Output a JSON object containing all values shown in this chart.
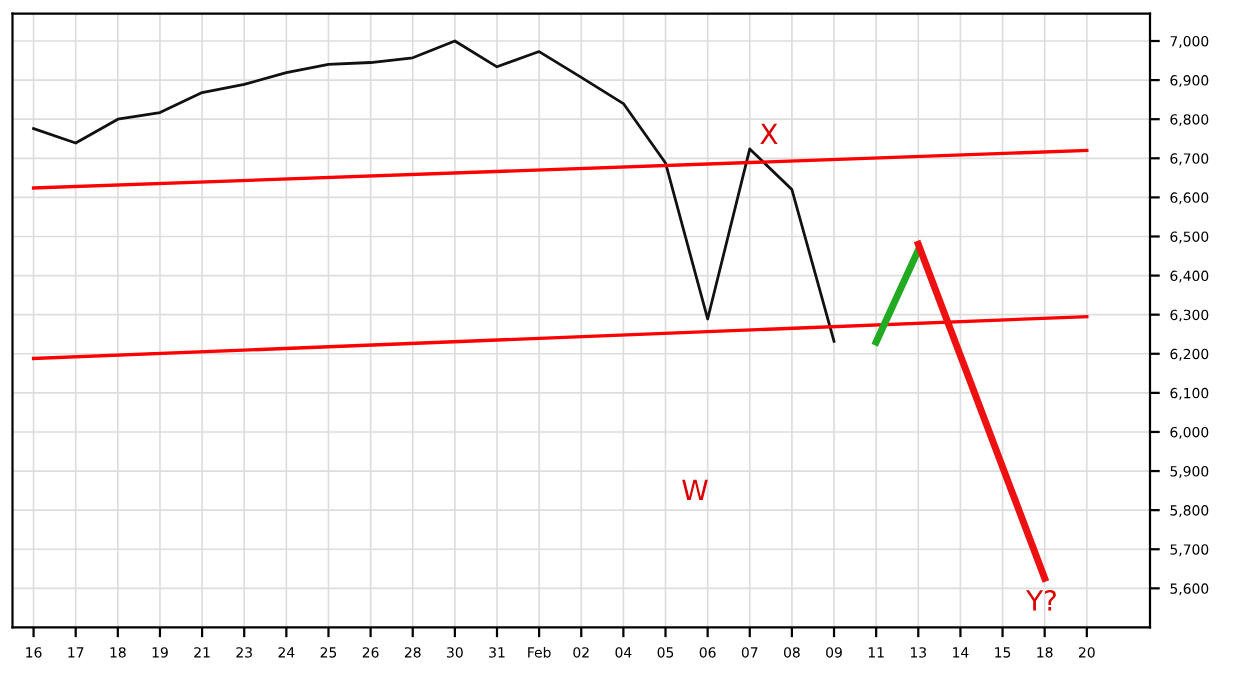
{
  "chart_data": {
    "type": "line",
    "grid": true,
    "categories": [
      "16",
      "17",
      "18",
      "19",
      "21",
      "23",
      "24",
      "25",
      "26",
      "28",
      "30",
      "31",
      "Feb",
      "02",
      "04",
      "05",
      "06",
      "07",
      "08",
      "09",
      "11",
      "13",
      "14",
      "15",
      "18",
      "20"
    ],
    "ylim": [
      5500,
      7070
    ],
    "yticks": [
      {
        "value": 5600,
        "label": "5,600"
      },
      {
        "value": 5700,
        "label": "5,700"
      },
      {
        "value": 5800,
        "label": "5,800"
      },
      {
        "value": 5900,
        "label": "5,900"
      },
      {
        "value": 6000,
        "label": "6,000"
      },
      {
        "value": 6100,
        "label": "6,100"
      },
      {
        "value": 6200,
        "label": "6,200"
      },
      {
        "value": 6300,
        "label": "6,300"
      },
      {
        "value": 6400,
        "label": "6,400"
      },
      {
        "value": 6500,
        "label": "6,500"
      },
      {
        "value": 6600,
        "label": "6,600"
      },
      {
        "value": 6700,
        "label": "6,700"
      },
      {
        "value": 6800,
        "label": "6,800"
      },
      {
        "value": 6900,
        "label": "6,900"
      },
      {
        "value": 7000,
        "label": "7,000"
      }
    ],
    "series": [
      {
        "color": "#111111",
        "values": [
          6776,
          6739,
          6800,
          6817,
          6868,
          6889,
          6919,
          6940,
          6945,
          6957,
          7000,
          6934,
          6973,
          6907,
          6840,
          6688,
          6289,
          6724,
          6620,
          6232,
          null,
          null,
          null,
          null,
          null,
          null
        ]
      },
      {
        "color": "#ff0000",
        "values": [
          6624,
          null,
          null,
          null,
          null,
          null,
          null,
          null,
          null,
          null,
          null,
          null,
          null,
          null,
          null,
          null,
          null,
          null,
          null,
          null,
          null,
          null,
          null,
          null,
          null,
          6720
        ]
      },
      {
        "color": "#ff0000",
        "values": [
          6188,
          null,
          null,
          null,
          null,
          null,
          null,
          null,
          null,
          null,
          null,
          null,
          null,
          null,
          null,
          null,
          null,
          null,
          null,
          null,
          null,
          null,
          null,
          null,
          null,
          6295
        ]
      },
      {
        "color": "#22aa22",
        "values": [
          null,
          null,
          null,
          null,
          null,
          null,
          null,
          null,
          null,
          null,
          null,
          null,
          null,
          null,
          null,
          null,
          null,
          null,
          null,
          null,
          6230,
          6465,
          null,
          null,
          null,
          null
        ]
      },
      {
        "color": "#ee1111",
        "values": [
          null,
          null,
          null,
          null,
          null,
          null,
          null,
          null,
          null,
          null,
          null,
          null,
          null,
          null,
          null,
          null,
          null,
          null,
          null,
          null,
          null,
          6480,
          null,
          null,
          5626,
          null
        ]
      }
    ],
    "annotations": [
      "W",
      "X",
      "Y?"
    ]
  }
}
